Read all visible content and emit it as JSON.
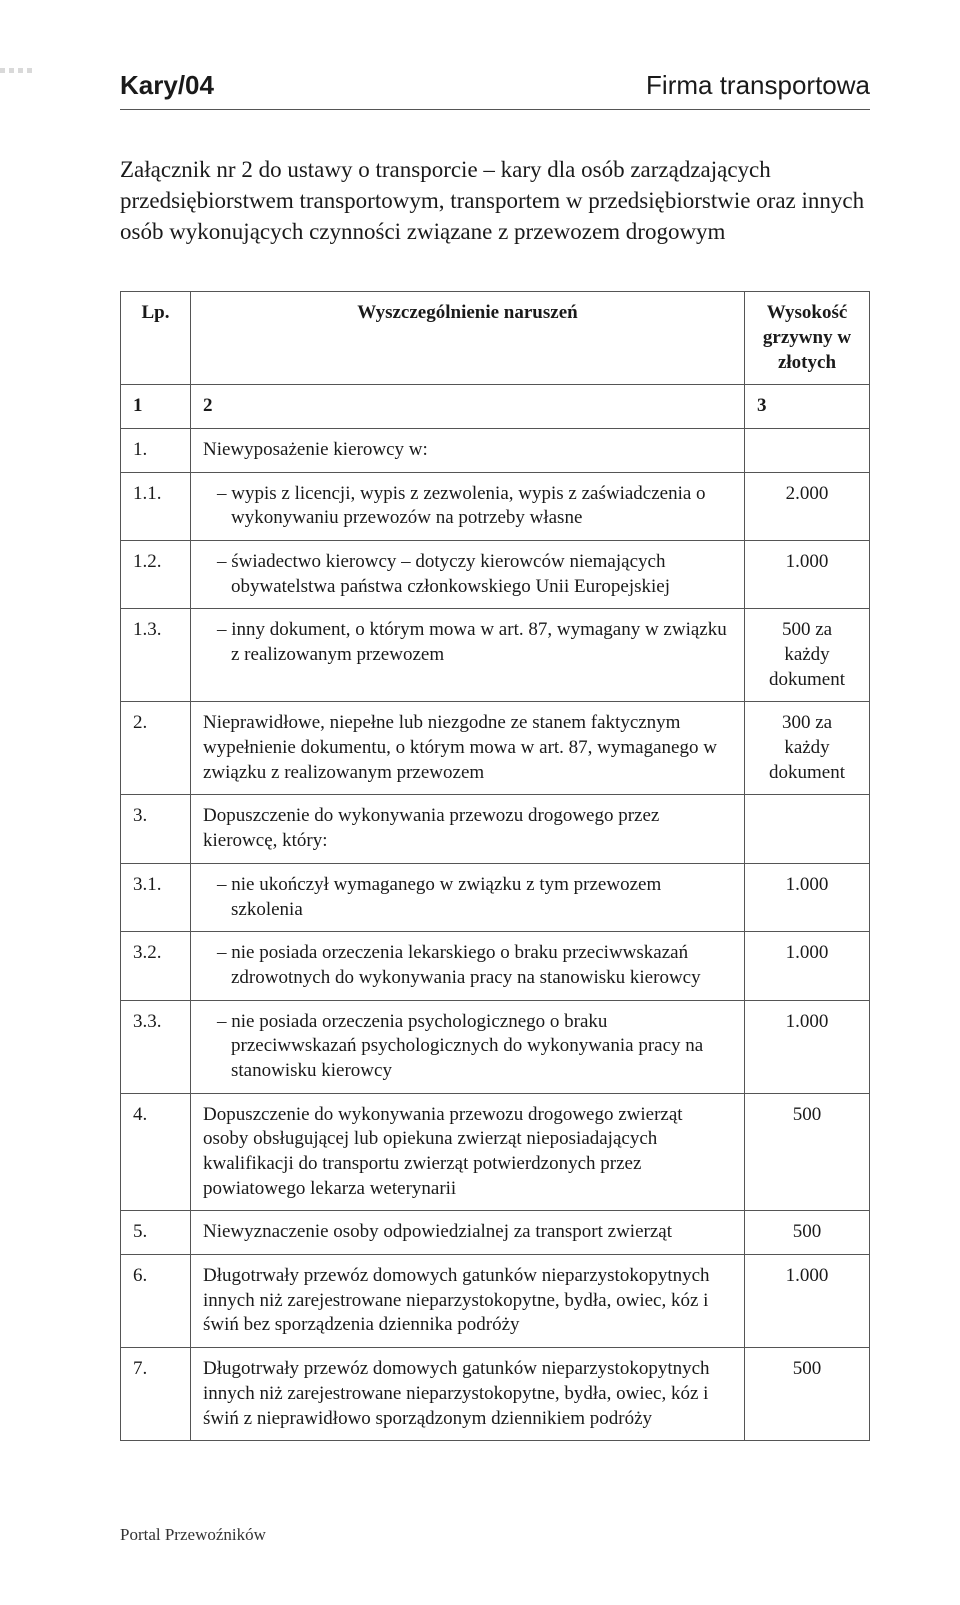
{
  "header": {
    "section_code": "Kary/04",
    "section_label": "Firma transportowa"
  },
  "intro": "Załącznik nr 2 do ustawy o transporcie – kary dla osób zarządzających przedsiębiorstwem transportowym, transportem w przedsiębiorstwie oraz innych osób wykonujących czynności związane z przewozem drogowym",
  "table": {
    "head": {
      "lp": "Lp.",
      "desc": "Wyszczególnienie naruszeń",
      "amt": "Wysokość grzywny w złotych"
    },
    "colnums": {
      "c1": "1",
      "c2": "2",
      "c3": "3"
    },
    "rows": [
      {
        "lp": "1.",
        "desc": "Niewyposażenie kierowcy w:",
        "amt": "",
        "indent": false
      },
      {
        "lp": "1.1.",
        "desc": "– wypis z licencji, wypis z zezwolenia, wypis z zaświadczenia o wykonywaniu przewozów na potrzeby własne",
        "amt": "2.000",
        "indent": true
      },
      {
        "lp": "1.2.",
        "desc": "– świadectwo kierowcy – dotyczy kierowców niemających obywatelstwa państwa członkowskiego Unii Europejskiej",
        "amt": "1.000",
        "indent": true
      },
      {
        "lp": "1.3.",
        "desc": "– inny dokument, o którym mowa w art. 87, wymagany w związku z realizowanym przewozem",
        "amt": "500 za każdy dokument",
        "indent": true
      },
      {
        "lp": "2.",
        "desc": "Nieprawidłowe, niepełne lub niezgodne ze stanem faktycznym wypełnienie dokumentu, o którym mowa w art. 87, wymaganego w związku z realizowanym przewozem",
        "amt": "300 za każdy dokument",
        "indent": false
      },
      {
        "lp": "3.",
        "desc": "Dopuszczenie do wykonywania przewozu drogowego przez kierowcę, który:",
        "amt": "",
        "indent": false
      },
      {
        "lp": "3.1.",
        "desc": "– nie ukończył wymaganego w związku z tym przewozem szkolenia",
        "amt": "1.000",
        "indent": true
      },
      {
        "lp": "3.2.",
        "desc": "– nie posiada orzeczenia lekarskiego o braku przeciwwskazań zdrowotnych do wykonywania pracy na stanowisku kierowcy",
        "amt": "1.000",
        "indent": true
      },
      {
        "lp": "3.3.",
        "desc": "– nie posiada orzeczenia psychologicznego o braku przeciwwskazań psychologicznych do wykonywania pracy na stanowisku kierowcy",
        "amt": "1.000",
        "indent": true
      },
      {
        "lp": "4.",
        "desc": "Dopuszczenie do wykonywania przewozu drogowego zwierząt osoby obsługującej lub opiekuna zwierząt nieposiadających kwalifikacji do transportu zwierząt potwierdzonych przez powiatowego lekarza weterynarii",
        "amt": "500",
        "indent": false
      },
      {
        "lp": "5.",
        "desc": "Niewyznaczenie osoby odpowiedzialnej za transport zwierząt",
        "amt": "500",
        "indent": false
      },
      {
        "lp": "6.",
        "desc": "Długotrwały przewóz domowych gatunków nieparzystokopytnych innych niż zarejestrowane nieparzystokopytne, bydła, owiec, kóz i świń bez sporządzenia dziennika podróży",
        "amt": "1.000",
        "indent": false
      },
      {
        "lp": "7.",
        "desc": "Długotrwały przewóz domowych gatunków nieparzystokopytnych innych niż zarejestrowane nieparzystokopytne, bydła, owiec, kóz i świń z nieprawidłowo sporządzonym dziennikiem podróży",
        "amt": "500",
        "indent": false
      }
    ]
  },
  "footer": "Portal Przewoźników",
  "style": {
    "page_bg": "#ffffff",
    "text_color": "#1a1a1a",
    "border_color": "#555555",
    "dot_color": "#d9d9d9",
    "font_body": "Minion Pro, Times New Roman, Georgia, serif",
    "font_header": "Arial, Helvetica, sans-serif",
    "col_widths": {
      "lp": 70,
      "amt": 125
    }
  }
}
